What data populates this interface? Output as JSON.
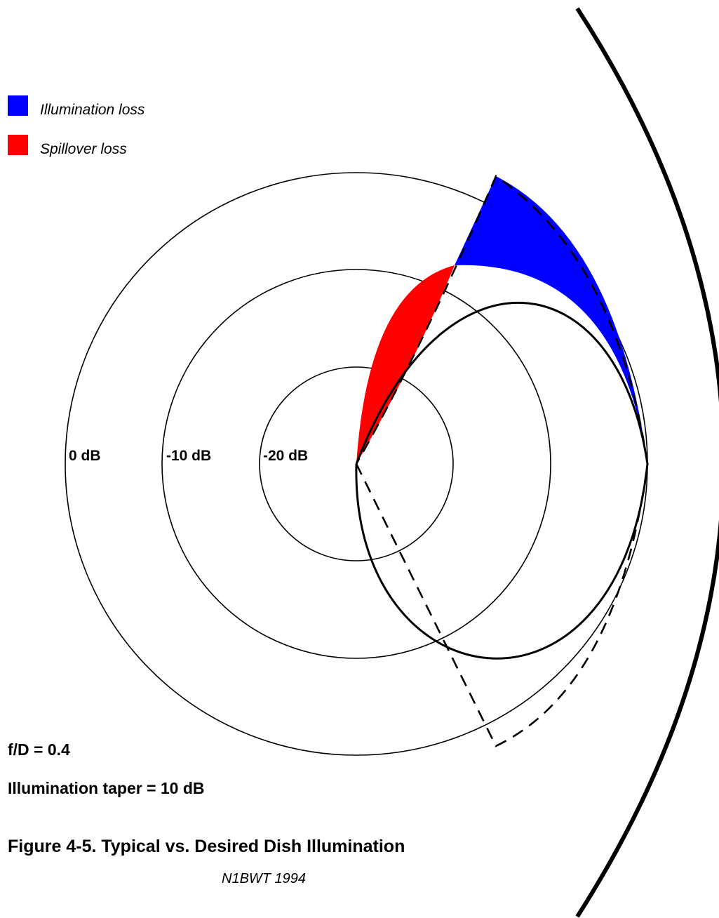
{
  "legend": [
    {
      "label": "Illumination loss",
      "color": "#0000ff"
    },
    {
      "label": "Spillover loss",
      "color": "#ff0000"
    }
  ],
  "rings": [
    {
      "label": "0 dB"
    },
    {
      "label": "-10 dB"
    },
    {
      "label": "-20 dB"
    }
  ],
  "params": {
    "fd": "f/D = 0.4",
    "taper": "Illumination taper = 10 dB"
  },
  "caption": "Figure 4-5.  Typical vs. Desired Dish Illumination",
  "credit": "N1BWT 1994",
  "colors": {
    "illumination_loss": "#0000ff",
    "spillover_loss": "#ff0000",
    "lines": "#000000"
  }
}
